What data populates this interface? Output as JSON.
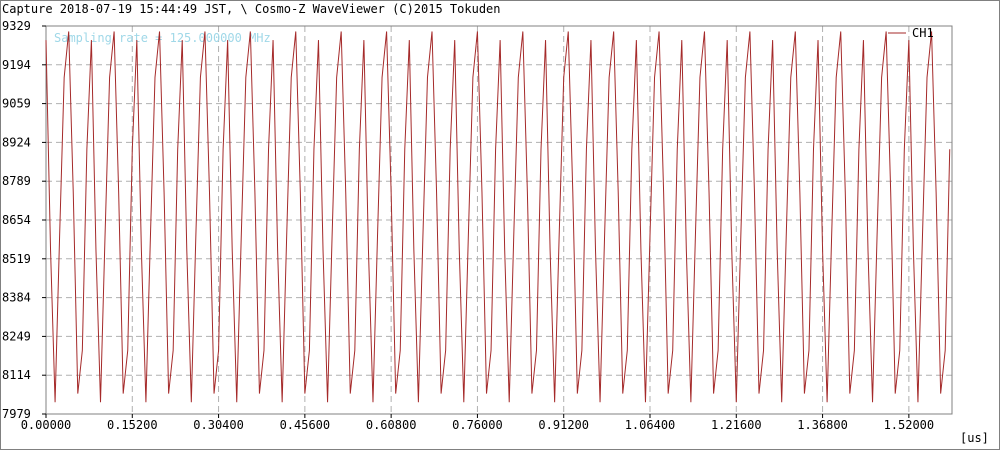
{
  "window": {
    "title": "Capture 2018-07-19 15:44:49 JST, \\ Cosmo-Z WaveViewer (C)2015 Tokuden"
  },
  "chart_data": {
    "type": "line",
    "annotation": "Sampling rate = 125.000000 MHz",
    "xlabel": "[us]",
    "ylabel": "",
    "x_tick_labels": [
      "0.00000",
      "0.15200",
      "0.30400",
      "0.45600",
      "0.60800",
      "0.76000",
      "0.91200",
      "1.06400",
      "1.21600",
      "1.36800",
      "1.52000"
    ],
    "y_tick_labels": [
      "9329",
      "9194",
      "9059",
      "8924",
      "8789",
      "8654",
      "8519",
      "8384",
      "8249",
      "8114",
      "7979"
    ],
    "xlim": [
      0,
      1.596
    ],
    "ylim": [
      7979,
      9329
    ],
    "grid": true,
    "legend_position": "top-right",
    "colors": {
      "series": "#a52a2a",
      "grid": "#b0b0b0",
      "annotation": "#a0d8e8"
    },
    "series": [
      {
        "name": "CH1",
        "sample_interval_us": 0.008,
        "pattern": [
          9280,
          8550,
          8020,
          8600,
          9150,
          9310,
          8750,
          8050,
          8200,
          8900
        ],
        "num_samples": 200
      }
    ]
  }
}
